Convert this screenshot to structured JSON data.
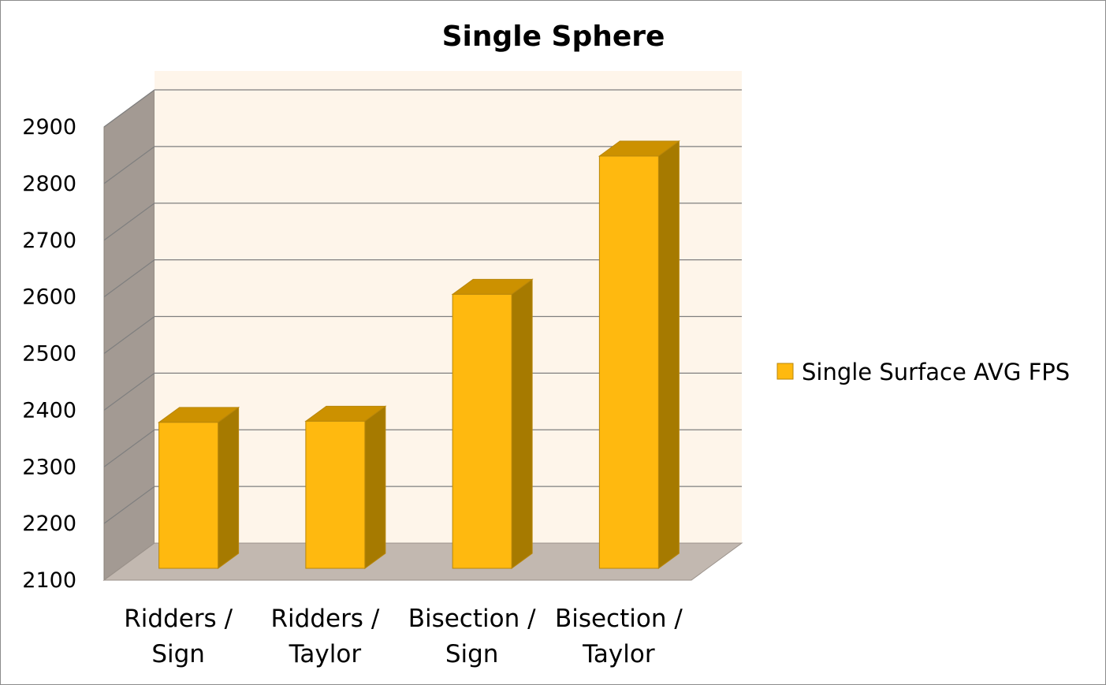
{
  "chart_data": {
    "type": "bar",
    "title": "Single Sphere",
    "categories": [
      "Ridders / Sign",
      "Ridders / Taylor",
      "Bisection / Sign",
      "Bisection / Taylor"
    ],
    "category_lines": [
      [
        "Ridders /",
        "Sign"
      ],
      [
        "Ridders /",
        "Taylor"
      ],
      [
        "Bisection /",
        "Sign"
      ],
      [
        "Bisection /",
        "Taylor"
      ]
    ],
    "series": [
      {
        "name": "Single Surface AVG FPS",
        "values": [
          2366,
          2368,
          2592,
          2836
        ]
      }
    ],
    "ylim": [
      2100,
      2900
    ],
    "yticks": [
      2100,
      2200,
      2300,
      2400,
      2500,
      2600,
      2700,
      2800,
      2900
    ],
    "xlabel": "",
    "ylabel": "",
    "grid": true,
    "three_d": true,
    "legend_position": "right",
    "colors": {
      "bar_front": "#FFB90F",
      "bar_top": "#CC9100",
      "bar_side": "#A67A00",
      "bar_edge": "#B8860B",
      "back_wall": "#FEF5EA",
      "side_wall": "#A39A93",
      "floor": "#C2B8B0",
      "gridline": "#7F7F7F"
    }
  }
}
